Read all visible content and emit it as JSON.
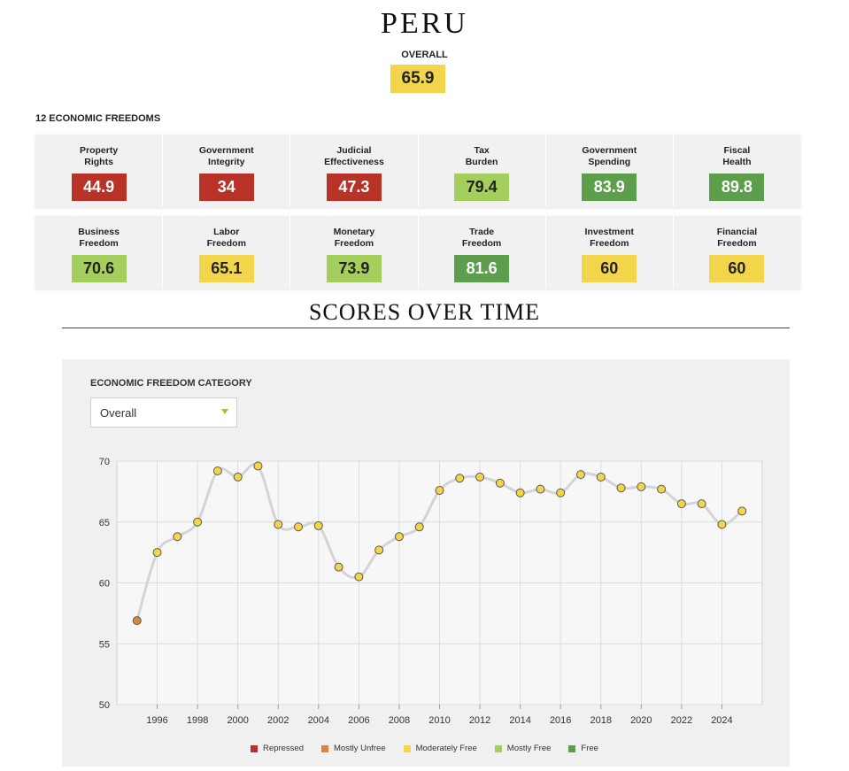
{
  "country": "PERU",
  "overall": {
    "label": "OVERALL",
    "score": "65.9",
    "color": "#f2d54a"
  },
  "freedoms_heading": "12 ECONOMIC FREEDOMS",
  "freedoms": [
    {
      "label": "Property\nRights",
      "score": "44.9",
      "bg": "#b83228",
      "fg": "#ffffff"
    },
    {
      "label": "Government\nIntegrity",
      "score": "34",
      "bg": "#b83228",
      "fg": "#ffffff"
    },
    {
      "label": "Judicial\nEffectiveness",
      "score": "47.3",
      "bg": "#b83228",
      "fg": "#ffffff"
    },
    {
      "label": "Tax\nBurden",
      "score": "79.4",
      "bg": "#a5cf5c",
      "fg": "#222222"
    },
    {
      "label": "Government\nSpending",
      "score": "83.9",
      "bg": "#5c9e4c",
      "fg": "#ffffff"
    },
    {
      "label": "Fiscal\nHealth",
      "score": "89.8",
      "bg": "#5c9e4c",
      "fg": "#ffffff"
    },
    {
      "label": "Business\nFreedom",
      "score": "70.6",
      "bg": "#a5cf5c",
      "fg": "#222222"
    },
    {
      "label": "Labor\nFreedom",
      "score": "65.1",
      "bg": "#f2d54a",
      "fg": "#222222"
    },
    {
      "label": "Monetary\nFreedom",
      "score": "73.9",
      "bg": "#a5cf5c",
      "fg": "#222222"
    },
    {
      "label": "Trade\nFreedom",
      "score": "81.6",
      "bg": "#5c9e4c",
      "fg": "#ffffff"
    },
    {
      "label": "Investment\nFreedom",
      "score": "60",
      "bg": "#f2d54a",
      "fg": "#222222"
    },
    {
      "label": "Financial\nFreedom",
      "score": "60",
      "bg": "#f2d54a",
      "fg": "#222222"
    }
  ],
  "scores_title": "SCORES OVER TIME",
  "category_label": "ECONOMIC FREEDOM CATEGORY",
  "dropdown_value": "Overall",
  "chart_data": {
    "type": "line",
    "title": "",
    "xlabel": "",
    "ylabel": "",
    "ylim": [
      50,
      70
    ],
    "xlim": [
      1994,
      2026
    ],
    "yticks": [
      "50",
      "55",
      "60",
      "65",
      "70"
    ],
    "xticks": [
      "1996",
      "1998",
      "2000",
      "2002",
      "2004",
      "2006",
      "2008",
      "2010",
      "2012",
      "2014",
      "2016",
      "2018",
      "2020",
      "2022",
      "2024"
    ],
    "grid": true,
    "series": [
      {
        "x": [
          1995,
          1996,
          1997,
          1998,
          1999,
          2000,
          2001,
          2002,
          2003,
          2004,
          2005,
          2006,
          2007,
          2008,
          2009,
          2010,
          2011,
          2012,
          2013,
          2014,
          2015,
          2016,
          2017,
          2018,
          2019,
          2020,
          2021,
          2022,
          2023,
          2024,
          2025
        ],
        "y": [
          56.9,
          62.5,
          63.8,
          65.0,
          69.2,
          68.7,
          69.6,
          64.8,
          64.6,
          64.7,
          61.3,
          60.5,
          62.7,
          63.8,
          64.6,
          67.6,
          68.6,
          68.7,
          68.2,
          67.4,
          67.7,
          67.4,
          68.9,
          68.7,
          67.8,
          67.9,
          67.7,
          66.5,
          66.5,
          64.8,
          65.9
        ]
      }
    ],
    "point_colors": {
      "mostly_unfree": "#d9853b",
      "moderately_free": "#f2d54a"
    },
    "legend_position": "bottom"
  },
  "legend": [
    {
      "label": "Repressed",
      "color": "#b83228"
    },
    {
      "label": "Mostly Unfree",
      "color": "#d9853b"
    },
    {
      "label": "Moderately Free",
      "color": "#f2d54a"
    },
    {
      "label": "Mostly Free",
      "color": "#a5cf5c"
    },
    {
      "label": "Free",
      "color": "#5c9e4c"
    }
  ]
}
